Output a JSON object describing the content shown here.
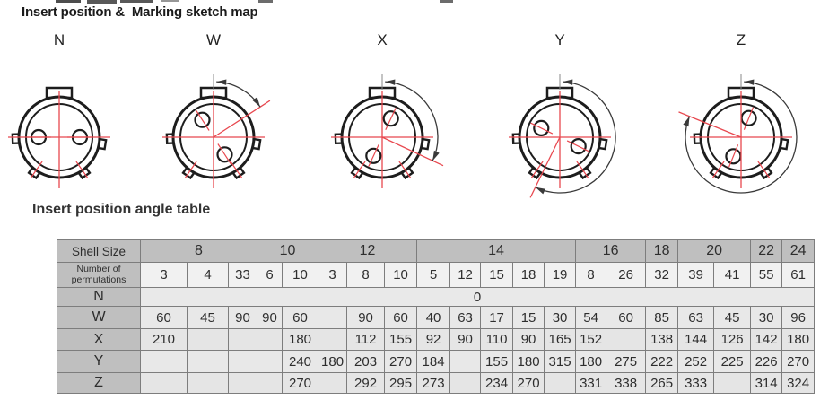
{
  "titles": {
    "sketch_map": "Insert position &  Marking sketch map",
    "angle_table": "Insert position angle table"
  },
  "diagrams": [
    {
      "label": "N",
      "rotation_deg": 0,
      "has_arc": false
    },
    {
      "label": "W",
      "rotation_deg": 57,
      "has_arc": true
    },
    {
      "label": "X",
      "rotation_deg": 115,
      "has_arc": true
    },
    {
      "label": "Y",
      "rotation_deg": 206,
      "has_arc": true
    },
    {
      "label": "Z",
      "rotation_deg": 292,
      "has_arc": true
    }
  ],
  "colors": {
    "marking_red": "#e8484f",
    "line_black": "#1d1d1d",
    "arc_gray": "#3a3a3a",
    "header_bg": "#bfbfbf",
    "cell_bg": "#e5e5e5",
    "border_gray": "#7d7d7d"
  },
  "table": {
    "corner_label": "Shell Size",
    "permutations_label_line1": "Number of",
    "permutations_label_line2": "permutations",
    "shell_groups": [
      {
        "size": "8",
        "span": 3
      },
      {
        "size": "10",
        "span": 2
      },
      {
        "size": "12",
        "span": 3
      },
      {
        "size": "14",
        "span": 5
      },
      {
        "size": "16",
        "span": 2
      },
      {
        "size": "18",
        "span": 1
      },
      {
        "size": "20",
        "span": 2
      },
      {
        "size": "22",
        "span": 1
      },
      {
        "size": "24",
        "span": 1
      }
    ],
    "permutations": [
      "3",
      "4",
      "33",
      "6",
      "10",
      "3",
      "8",
      "10",
      "5",
      "12",
      "15",
      "18",
      "19",
      "8",
      "26",
      "32",
      "39",
      "41",
      "55",
      "61"
    ],
    "rows": [
      {
        "label": "N",
        "merged_value": "0"
      },
      {
        "label": "W",
        "cells": [
          "60",
          "45",
          "90",
          "90",
          "60",
          "",
          "90",
          "60",
          "40",
          "63",
          "17",
          "15",
          "30",
          "54",
          "60",
          "85",
          "63",
          "45",
          "30",
          "96"
        ]
      },
      {
        "label": "X",
        "cells": [
          "210",
          "",
          "",
          "",
          "180",
          "",
          "112",
          "155",
          "92",
          "90",
          "110",
          "90",
          "165",
          "152",
          "",
          "138",
          "144",
          "126",
          "142",
          "180"
        ]
      },
      {
        "label": "Y",
        "cells": [
          "",
          "",
          "",
          "",
          "240",
          "180",
          "203",
          "270",
          "184",
          "",
          "155",
          "180",
          "315",
          "180",
          "275",
          "222",
          "252",
          "225",
          "226",
          "270"
        ]
      },
      {
        "label": "Z",
        "cells": [
          "",
          "",
          "",
          "",
          "270",
          "",
          "292",
          "295",
          "273",
          "",
          "234",
          "270",
          "",
          "331",
          "338",
          "265",
          "333",
          "",
          "314",
          "324"
        ]
      }
    ]
  }
}
